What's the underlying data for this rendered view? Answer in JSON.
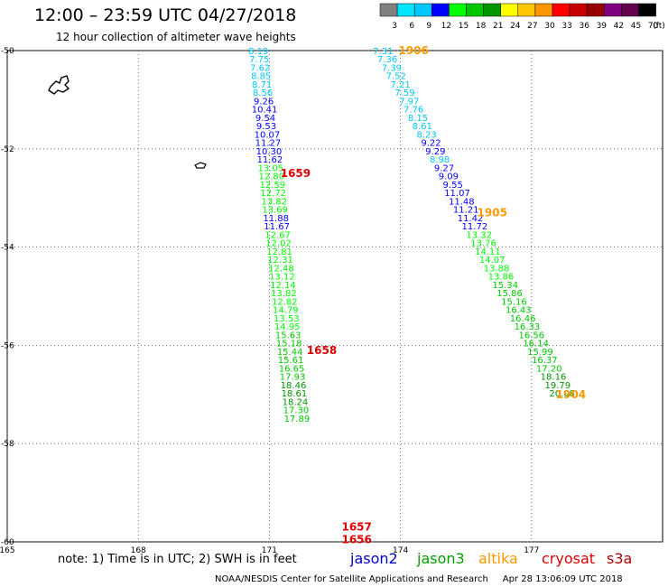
{
  "title": "12:00 – 23:59 UTC 04/27/2018",
  "subtitle": "12 hour collection of altimeter wave heights",
  "legend": {
    "unit": "(ft)",
    "ticks": [
      "3",
      "6",
      "9",
      "12",
      "15",
      "18",
      "21",
      "24",
      "27",
      "30",
      "33",
      "36",
      "39",
      "42",
      "45",
      "70"
    ],
    "colors": [
      "#808080",
      "#00e5ff",
      "#00c8ff",
      "#0000ff",
      "#00ff00",
      "#00c800",
      "#009600",
      "#ffff00",
      "#ffc800",
      "#ff9600",
      "#ff0000",
      "#c80000",
      "#960000",
      "#800080",
      "#640050",
      "#000000"
    ]
  },
  "note": "note: 1) Time is in UTC; 2) SWH is in feet",
  "satellites": [
    {
      "name": "jason2",
      "color": "#0000cc"
    },
    {
      "name": "jason3",
      "color": "#00a000"
    },
    {
      "name": "altika",
      "color": "#ff9900"
    },
    {
      "name": "cryosat",
      "color": "#dd0000"
    },
    {
      "name": "s3a",
      "color": "#aa0000"
    }
  ],
  "credit": "NOAA/NESDIS Center for Satellite Applications and Research     Apr 28 13:06:09 UTC 2018",
  "chart_data": {
    "type": "scatter",
    "x_ticks": [
      "165",
      "168",
      "171",
      "174",
      "177"
    ],
    "y_ticks": [
      "-50",
      "-52",
      "-54",
      "-56",
      "-58",
      "-60"
    ],
    "xlim": [
      165,
      180
    ],
    "ylim": [
      -60,
      -50
    ],
    "track_a": {
      "time_labels": [
        {
          "text": "1659",
          "lon": 171.6,
          "lat": -52.5,
          "color": "#dd0000"
        },
        {
          "text": "1658",
          "lon": 172.2,
          "lat": -56.1,
          "color": "#dd0000"
        },
        {
          "text": "1657",
          "lon": 173.0,
          "lat": -59.7,
          "color": "#dd0000"
        },
        {
          "text": "1656",
          "lon": 173.0,
          "lat": -59.95,
          "color": "#dd0000"
        }
      ],
      "points": [
        {
          "v": "8.19",
          "lon": 170.75,
          "lat": -50.0,
          "c": "#00c8ff"
        },
        {
          "v": "7.75",
          "lon": 170.77,
          "lat": -50.17,
          "c": "#00c8ff"
        },
        {
          "v": "7.62",
          "lon": 170.79,
          "lat": -50.34,
          "c": "#00c8ff"
        },
        {
          "v": "8.85",
          "lon": 170.81,
          "lat": -50.51,
          "c": "#00c8ff"
        },
        {
          "v": "8.71",
          "lon": 170.83,
          "lat": -50.68,
          "c": "#00c8ff"
        },
        {
          "v": "8.56",
          "lon": 170.85,
          "lat": -50.85,
          "c": "#00c8ff"
        },
        {
          "v": "9.26",
          "lon": 170.87,
          "lat": -51.02,
          "c": "#0000ff"
        },
        {
          "v": "10.41",
          "lon": 170.89,
          "lat": -51.19,
          "c": "#0000ff"
        },
        {
          "v": "9.54",
          "lon": 170.91,
          "lat": -51.36,
          "c": "#0000ff"
        },
        {
          "v": "9.53",
          "lon": 170.93,
          "lat": -51.53,
          "c": "#0000ff"
        },
        {
          "v": "10.07",
          "lon": 170.95,
          "lat": -51.7,
          "c": "#0000ff"
        },
        {
          "v": "11.27",
          "lon": 170.97,
          "lat": -51.87,
          "c": "#0000ff"
        },
        {
          "v": "10.30",
          "lon": 170.99,
          "lat": -52.04,
          "c": "#0000ff"
        },
        {
          "v": "11.62",
          "lon": 171.01,
          "lat": -52.21,
          "c": "#0000ff"
        },
        {
          "v": "13.05",
          "lon": 171.03,
          "lat": -52.38,
          "c": "#00ff00"
        },
        {
          "v": "12.80",
          "lon": 171.05,
          "lat": -52.55,
          "c": "#00ff00"
        },
        {
          "v": "12.59",
          "lon": 171.07,
          "lat": -52.72,
          "c": "#00ff00"
        },
        {
          "v": "12.72",
          "lon": 171.09,
          "lat": -52.89,
          "c": "#00ff00"
        },
        {
          "v": "13.82",
          "lon": 171.11,
          "lat": -53.06,
          "c": "#00ff00"
        },
        {
          "v": "13.69",
          "lon": 171.13,
          "lat": -53.23,
          "c": "#00ff00"
        },
        {
          "v": "11.88",
          "lon": 171.15,
          "lat": -53.4,
          "c": "#0000ff"
        },
        {
          "v": "11.67",
          "lon": 171.17,
          "lat": -53.57,
          "c": "#0000ff"
        },
        {
          "v": "12.67",
          "lon": 171.19,
          "lat": -53.74,
          "c": "#00ff00"
        },
        {
          "v": "12.02",
          "lon": 171.21,
          "lat": -53.91,
          "c": "#00ff00"
        },
        {
          "v": "12.81",
          "lon": 171.23,
          "lat": -54.08,
          "c": "#00ff00"
        },
        {
          "v": "12.31",
          "lon": 171.25,
          "lat": -54.25,
          "c": "#00ff00"
        },
        {
          "v": "12.48",
          "lon": 171.27,
          "lat": -54.42,
          "c": "#00ff00"
        },
        {
          "v": "13.12",
          "lon": 171.29,
          "lat": -54.59,
          "c": "#00ff00"
        },
        {
          "v": "12.14",
          "lon": 171.31,
          "lat": -54.76,
          "c": "#00ff00"
        },
        {
          "v": "13.82",
          "lon": 171.33,
          "lat": -54.93,
          "c": "#00ff00"
        },
        {
          "v": "12.82",
          "lon": 171.35,
          "lat": -55.1,
          "c": "#00ff00"
        },
        {
          "v": "14.79",
          "lon": 171.37,
          "lat": -55.27,
          "c": "#00ff00"
        },
        {
          "v": "13.53",
          "lon": 171.39,
          "lat": -55.44,
          "c": "#00ff00"
        },
        {
          "v": "14.95",
          "lon": 171.41,
          "lat": -55.61,
          "c": "#00ff00"
        },
        {
          "v": "15.63",
          "lon": 171.43,
          "lat": -55.78,
          "c": "#00c800"
        },
        {
          "v": "15.18",
          "lon": 171.45,
          "lat": -55.95,
          "c": "#00c800"
        },
        {
          "v": "15.44",
          "lon": 171.47,
          "lat": -56.12,
          "c": "#00c800"
        },
        {
          "v": "15.61",
          "lon": 171.49,
          "lat": -56.29,
          "c": "#00c800"
        },
        {
          "v": "16.65",
          "lon": 171.51,
          "lat": -56.46,
          "c": "#00c800"
        },
        {
          "v": "17.93",
          "lon": 171.53,
          "lat": -56.63,
          "c": "#00c800"
        },
        {
          "v": "18.46",
          "lon": 171.55,
          "lat": -56.8,
          "c": "#009600"
        },
        {
          "v": "18.61",
          "lon": 171.57,
          "lat": -56.97,
          "c": "#009600"
        },
        {
          "v": "18.24",
          "lon": 171.59,
          "lat": -57.14,
          "c": "#009600"
        },
        {
          "v": "17.30",
          "lon": 171.61,
          "lat": -57.31,
          "c": "#00c800"
        },
        {
          "v": "17.89",
          "lon": 171.63,
          "lat": -57.48,
          "c": "#00c800"
        }
      ]
    },
    "track_b": {
      "time_labels": [
        {
          "text": "1906",
          "lon": 174.3,
          "lat": -50.0,
          "color": "#ff9900"
        },
        {
          "text": "1905",
          "lon": 176.1,
          "lat": -53.3,
          "color": "#ff9900"
        },
        {
          "text": "1904",
          "lon": 177.9,
          "lat": -57.0,
          "color": "#ff9900"
        }
      ],
      "points": [
        {
          "v": "7.31",
          "lon": 173.6,
          "lat": -50.0,
          "c": "#00c8ff"
        },
        {
          "v": "7.36",
          "lon": 173.7,
          "lat": -50.17,
          "c": "#00c8ff"
        },
        {
          "v": "7.39",
          "lon": 173.8,
          "lat": -50.34,
          "c": "#00c8ff"
        },
        {
          "v": "7.52",
          "lon": 173.9,
          "lat": -50.51,
          "c": "#00c8ff"
        },
        {
          "v": "7.21",
          "lon": 174.0,
          "lat": -50.68,
          "c": "#00c8ff"
        },
        {
          "v": "7.59",
          "lon": 174.1,
          "lat": -50.85,
          "c": "#00c8ff"
        },
        {
          "v": "7.97",
          "lon": 174.2,
          "lat": -51.02,
          "c": "#00c8ff"
        },
        {
          "v": "7.76",
          "lon": 174.3,
          "lat": -51.19,
          "c": "#00c8ff"
        },
        {
          "v": "8.15",
          "lon": 174.4,
          "lat": -51.36,
          "c": "#00c8ff"
        },
        {
          "v": "8.61",
          "lon": 174.5,
          "lat": -51.53,
          "c": "#00c8ff"
        },
        {
          "v": "8.23",
          "lon": 174.6,
          "lat": -51.7,
          "c": "#00c8ff"
        },
        {
          "v": "9.22",
          "lon": 174.7,
          "lat": -51.87,
          "c": "#0000ff"
        },
        {
          "v": "9.29",
          "lon": 174.8,
          "lat": -52.04,
          "c": "#0000ff"
        },
        {
          "v": "8.98",
          "lon": 174.9,
          "lat": -52.21,
          "c": "#00c8ff"
        },
        {
          "v": "9.27",
          "lon": 175.0,
          "lat": -52.38,
          "c": "#0000ff"
        },
        {
          "v": "9.09",
          "lon": 175.1,
          "lat": -52.55,
          "c": "#0000ff"
        },
        {
          "v": "9.55",
          "lon": 175.2,
          "lat": -52.72,
          "c": "#0000ff"
        },
        {
          "v": "11.07",
          "lon": 175.3,
          "lat": -52.89,
          "c": "#0000ff"
        },
        {
          "v": "11.48",
          "lon": 175.4,
          "lat": -53.06,
          "c": "#0000ff"
        },
        {
          "v": "11.21",
          "lon": 175.5,
          "lat": -53.23,
          "c": "#0000ff"
        },
        {
          "v": "11.42",
          "lon": 175.6,
          "lat": -53.4,
          "c": "#0000ff"
        },
        {
          "v": "11.72",
          "lon": 175.7,
          "lat": -53.57,
          "c": "#0000ff"
        },
        {
          "v": "13.32",
          "lon": 175.8,
          "lat": -53.74,
          "c": "#00ff00"
        },
        {
          "v": "13.76",
          "lon": 175.9,
          "lat": -53.91,
          "c": "#00ff00"
        },
        {
          "v": "14.11",
          "lon": 176.0,
          "lat": -54.08,
          "c": "#00ff00"
        },
        {
          "v": "14.07",
          "lon": 176.1,
          "lat": -54.25,
          "c": "#00ff00"
        },
        {
          "v": "13.88",
          "lon": 176.2,
          "lat": -54.42,
          "c": "#00ff00"
        },
        {
          "v": "13.86",
          "lon": 176.3,
          "lat": -54.59,
          "c": "#00ff00"
        },
        {
          "v": "15.34",
          "lon": 176.4,
          "lat": -54.76,
          "c": "#00c800"
        },
        {
          "v": "15.86",
          "lon": 176.5,
          "lat": -54.93,
          "c": "#00c800"
        },
        {
          "v": "15.16",
          "lon": 176.6,
          "lat": -55.1,
          "c": "#00c800"
        },
        {
          "v": "16.43",
          "lon": 176.7,
          "lat": -55.27,
          "c": "#00c800"
        },
        {
          "v": "16.46",
          "lon": 176.8,
          "lat": -55.44,
          "c": "#00c800"
        },
        {
          "v": "16.33",
          "lon": 176.9,
          "lat": -55.61,
          "c": "#00c800"
        },
        {
          "v": "16.56",
          "lon": 177.0,
          "lat": -55.78,
          "c": "#00c800"
        },
        {
          "v": "16.14",
          "lon": 177.1,
          "lat": -55.95,
          "c": "#00c800"
        },
        {
          "v": "15.99",
          "lon": 177.2,
          "lat": -56.12,
          "c": "#00c800"
        },
        {
          "v": "16.37",
          "lon": 177.3,
          "lat": -56.29,
          "c": "#00c800"
        },
        {
          "v": "17.20",
          "lon": 177.4,
          "lat": -56.46,
          "c": "#00c800"
        },
        {
          "v": "18.16",
          "lon": 177.5,
          "lat": -56.63,
          "c": "#009600"
        },
        {
          "v": "19.79",
          "lon": 177.6,
          "lat": -56.8,
          "c": "#009600"
        },
        {
          "v": "20.08",
          "lon": 177.7,
          "lat": -56.97,
          "c": "#009600"
        }
      ]
    }
  }
}
